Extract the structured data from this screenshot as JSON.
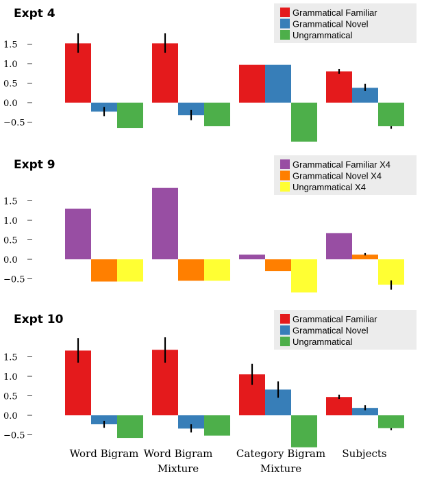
{
  "chart_data": [
    {
      "type": "bar",
      "title": "Expt 4",
      "categories": [
        "Word Bigram",
        "Word Bigram Mixture",
        "Category Bigram Mixture",
        "Subjects"
      ],
      "yticks": [
        "1.5",
        "1.0",
        "0.5",
        "0.0",
        "−0.5"
      ],
      "ylim": [
        -1.0,
        2.05
      ],
      "series": [
        {
          "name": "Grammatical Familiar",
          "color": "#e41a1c",
          "values": [
            1.52,
            1.52,
            0.97,
            0.8
          ],
          "err_low": [
            1.28,
            1.28,
            0.97,
            0.74
          ],
          "err_high": [
            1.78,
            1.78,
            0.97,
            0.86
          ]
        },
        {
          "name": "Grammatical Novel",
          "color": "#377eb8",
          "values": [
            -0.23,
            -0.32,
            0.97,
            0.38
          ],
          "err_low": [
            -0.35,
            -0.45,
            0.97,
            0.3
          ],
          "err_high": [
            -0.11,
            -0.19,
            0.97,
            0.48
          ]
        },
        {
          "name": "Ungrammatical",
          "color": "#4daf4a",
          "values": [
            -0.65,
            -0.6,
            -1.0,
            -0.6
          ],
          "err_low": [
            -0.65,
            -0.6,
            -1.0,
            -0.67
          ],
          "err_high": [
            -0.65,
            -0.6,
            -1.0,
            -0.6
          ]
        }
      ]
    },
    {
      "type": "bar",
      "title": "Expt 9",
      "categories": [
        "Word Bigram",
        "Word Bigram Mixture",
        "Category Bigram Mixture",
        "Subjects"
      ],
      "yticks": [
        "1.5",
        "1.0",
        "0.5",
        "0.0",
        "−0.5"
      ],
      "ylim": [
        -1.0,
        2.05
      ],
      "series": [
        {
          "name": "Grammatical Familiar X4",
          "color": "#984ea3",
          "values": [
            1.3,
            1.83,
            0.12,
            0.67
          ]
        },
        {
          "name": "Grammatical Novel X4",
          "color": "#ff7f00",
          "values": [
            -0.57,
            -0.55,
            -0.3,
            0.12
          ],
          "err_low": [
            -0.57,
            -0.55,
            -0.3,
            0.1
          ],
          "err_high": [
            -0.57,
            -0.55,
            -0.3,
            0.16
          ]
        },
        {
          "name": "Ungrammatical X4",
          "color": "#ffff33",
          "values": [
            -0.57,
            -0.55,
            -0.85,
            -0.65
          ],
          "err_low": [
            -0.57,
            -0.55,
            -0.85,
            -0.78
          ],
          "err_high": [
            -0.57,
            -0.55,
            -0.85,
            -0.54
          ]
        }
      ]
    },
    {
      "type": "bar",
      "title": "Expt 10",
      "categories": [
        "Word Bigram",
        "Word Bigram Mixture",
        "Category Bigram Mixture",
        "Subjects"
      ],
      "yticks": [
        "1.5",
        "1.0",
        "0.5",
        "0.0",
        "−0.5"
      ],
      "ylim": [
        -1.0,
        2.05
      ],
      "series": [
        {
          "name": "Grammatical Familiar",
          "color": "#e41a1c",
          "values": [
            1.66,
            1.68,
            1.05,
            0.47
          ],
          "err_low": [
            1.35,
            1.35,
            0.78,
            0.42
          ],
          "err_high": [
            1.98,
            2.0,
            1.32,
            0.53
          ]
        },
        {
          "name": "Grammatical Novel",
          "color": "#377eb8",
          "values": [
            -0.23,
            -0.34,
            0.66,
            0.19
          ],
          "err_low": [
            -0.32,
            -0.44,
            0.45,
            0.13
          ],
          "err_high": [
            -0.14,
            -0.23,
            0.87,
            0.26
          ]
        },
        {
          "name": "Ungrammatical",
          "color": "#4daf4a",
          "values": [
            -0.58,
            -0.52,
            -0.82,
            -0.33
          ],
          "err_low": [
            -0.58,
            -0.52,
            -0.82,
            -0.38
          ],
          "err_high": [
            -0.58,
            -0.52,
            -0.82,
            -0.33
          ]
        }
      ]
    }
  ],
  "xaxis_labels": [
    [
      "Word Bigram"
    ],
    [
      "Word Bigram",
      "Mixture"
    ],
    [
      "Category Bigram",
      "Mixture"
    ],
    [
      "Subjects"
    ]
  ]
}
